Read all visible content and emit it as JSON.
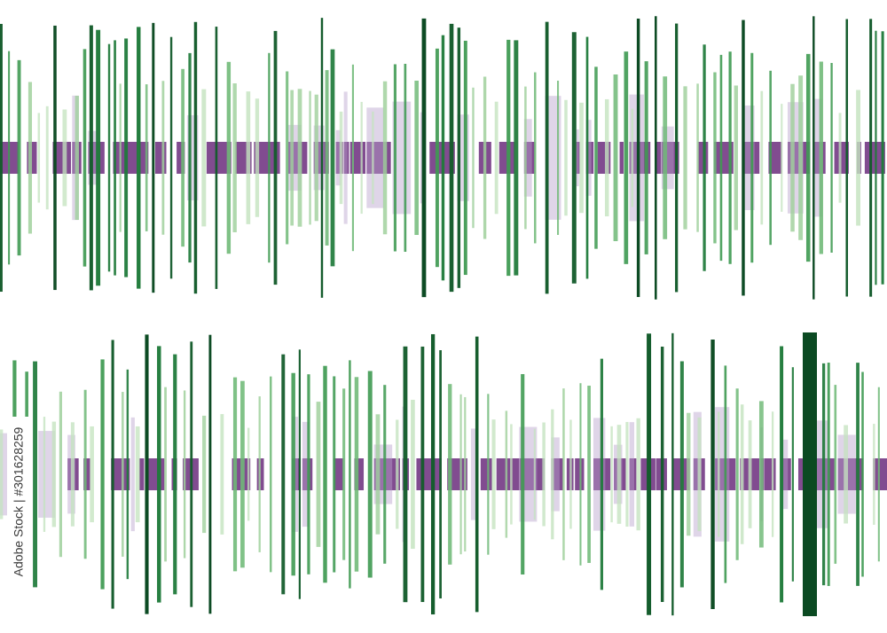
{
  "watermark": {
    "text": "Adobe Stock | #301628259"
  }
}
